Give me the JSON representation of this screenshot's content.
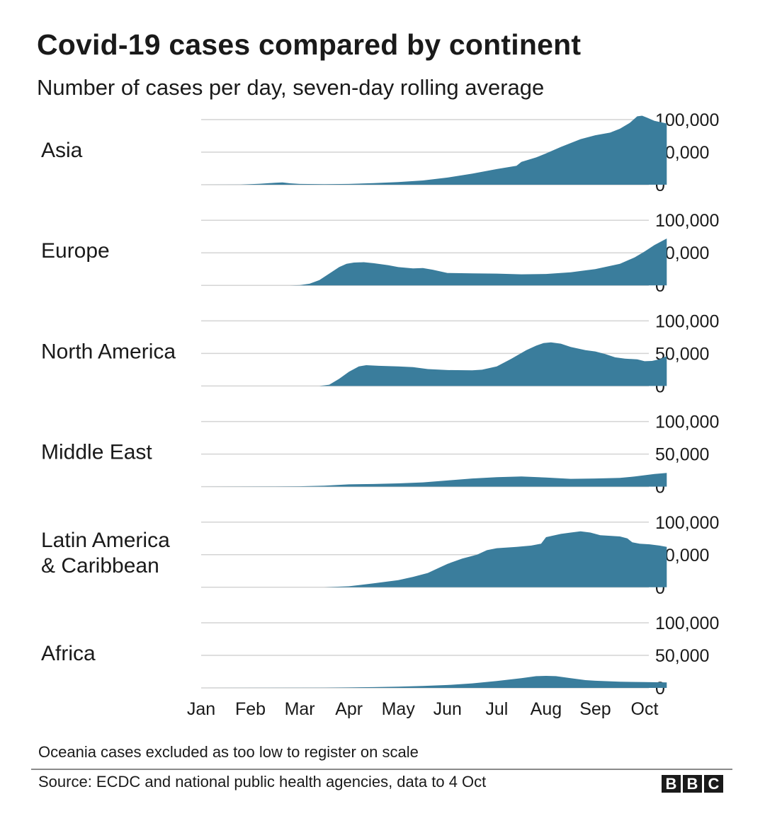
{
  "header": {
    "title": "Covid-19 cases compared by continent",
    "subtitle": "Number of cases per day, seven-day rolling average"
  },
  "footer": {
    "note": "Oceania cases excluded as too low to register on scale",
    "source": "Source: ECDC and national public health agencies, data to 4 Oct",
    "logo_letters": [
      "B",
      "B",
      "C"
    ]
  },
  "colors": {
    "area_fill": "#3a7d9c",
    "gridline": "#d4d4d4",
    "text": "#1a1a1a"
  },
  "chart_data": {
    "type": "area",
    "layout": "small-multiples",
    "x_unit": "month",
    "x_ticks": [
      "Jan",
      "Feb",
      "Mar",
      "Apr",
      "May",
      "Jun",
      "Jul",
      "Aug",
      "Sep",
      "Oct"
    ],
    "xlim": [
      0,
      9
    ],
    "ylim": [
      0,
      100000
    ],
    "y_ticks": [
      "100,000",
      "50,000",
      "0"
    ],
    "y_tick_values": [
      100000,
      50000,
      0
    ],
    "grid": true,
    "series": [
      {
        "name": "Asia",
        "points": [
          [
            0,
            0
          ],
          [
            0.8,
            100
          ],
          [
            1.2,
            1500
          ],
          [
            1.5,
            3000
          ],
          [
            1.65,
            3500
          ],
          [
            1.8,
            2200
          ],
          [
            2.0,
            1200
          ],
          [
            2.5,
            800
          ],
          [
            3.0,
            1200
          ],
          [
            3.5,
            2500
          ],
          [
            4.0,
            4000
          ],
          [
            4.5,
            6500
          ],
          [
            5.0,
            11000
          ],
          [
            5.5,
            17000
          ],
          [
            6.0,
            24000
          ],
          [
            6.4,
            29000
          ],
          [
            6.5,
            35000
          ],
          [
            6.8,
            42000
          ],
          [
            7.0,
            48000
          ],
          [
            7.3,
            58000
          ],
          [
            7.7,
            70000
          ],
          [
            8.0,
            76000
          ],
          [
            8.3,
            80000
          ],
          [
            8.5,
            86000
          ],
          [
            8.7,
            95000
          ],
          [
            8.85,
            105000
          ],
          [
            8.95,
            106000
          ],
          [
            9.05,
            103000
          ],
          [
            9.2,
            98000
          ],
          [
            9.45,
            94000
          ]
        ]
      },
      {
        "name": "Europe",
        "points": [
          [
            0,
            0
          ],
          [
            1.8,
            0
          ],
          [
            2.0,
            300
          ],
          [
            2.2,
            2500
          ],
          [
            2.4,
            8000
          ],
          [
            2.6,
            18000
          ],
          [
            2.8,
            28000
          ],
          [
            2.95,
            33000
          ],
          [
            3.1,
            35000
          ],
          [
            3.3,
            35500
          ],
          [
            3.5,
            34000
          ],
          [
            3.8,
            31000
          ],
          [
            4.0,
            28000
          ],
          [
            4.3,
            26000
          ],
          [
            4.5,
            26500
          ],
          [
            4.7,
            24000
          ],
          [
            5.0,
            19000
          ],
          [
            5.5,
            18500
          ],
          [
            6.0,
            18000
          ],
          [
            6.5,
            17000
          ],
          [
            7.0,
            17500
          ],
          [
            7.5,
            20000
          ],
          [
            8.0,
            25000
          ],
          [
            8.5,
            33000
          ],
          [
            8.8,
            43000
          ],
          [
            9.0,
            52000
          ],
          [
            9.2,
            62000
          ],
          [
            9.45,
            72000
          ]
        ]
      },
      {
        "name": "North America",
        "points": [
          [
            0,
            0
          ],
          [
            2.4,
            0
          ],
          [
            2.6,
            2000
          ],
          [
            2.8,
            11000
          ],
          [
            3.0,
            22000
          ],
          [
            3.2,
            30000
          ],
          [
            3.35,
            32000
          ],
          [
            3.6,
            31000
          ],
          [
            4.0,
            30000
          ],
          [
            4.3,
            29000
          ],
          [
            4.6,
            26000
          ],
          [
            5.0,
            24500
          ],
          [
            5.5,
            24000
          ],
          [
            5.7,
            25000
          ],
          [
            6.0,
            30000
          ],
          [
            6.3,
            42000
          ],
          [
            6.6,
            55000
          ],
          [
            6.8,
            62000
          ],
          [
            6.95,
            66000
          ],
          [
            7.1,
            67000
          ],
          [
            7.3,
            65000
          ],
          [
            7.5,
            60000
          ],
          [
            7.8,
            55000
          ],
          [
            8.0,
            53000
          ],
          [
            8.2,
            49000
          ],
          [
            8.4,
            44000
          ],
          [
            8.6,
            42000
          ],
          [
            8.85,
            41000
          ],
          [
            9.0,
            38000
          ],
          [
            9.15,
            38500
          ],
          [
            9.3,
            41000
          ],
          [
            9.45,
            46000
          ]
        ]
      },
      {
        "name": "Middle East",
        "points": [
          [
            0,
            0
          ],
          [
            1.5,
            200
          ],
          [
            2.0,
            500
          ],
          [
            2.5,
            1500
          ],
          [
            3.0,
            3500
          ],
          [
            3.5,
            4000
          ],
          [
            4.0,
            5000
          ],
          [
            4.5,
            6500
          ],
          [
            5.0,
            9500
          ],
          [
            5.5,
            12500
          ],
          [
            6.0,
            14500
          ],
          [
            6.5,
            15500
          ],
          [
            7.0,
            14000
          ],
          [
            7.5,
            12000
          ],
          [
            8.0,
            12500
          ],
          [
            8.5,
            13500
          ],
          [
            8.8,
            15500
          ],
          [
            9.0,
            17500
          ],
          [
            9.2,
            19500
          ],
          [
            9.45,
            21000
          ]
        ]
      },
      {
        "name": "Latin America & Caribbean",
        "points": [
          [
            0,
            0
          ],
          [
            2.5,
            0
          ],
          [
            3.0,
            1500
          ],
          [
            3.5,
            6000
          ],
          [
            4.0,
            11000
          ],
          [
            4.3,
            16000
          ],
          [
            4.6,
            22000
          ],
          [
            4.8,
            29000
          ],
          [
            5.0,
            36000
          ],
          [
            5.3,
            44000
          ],
          [
            5.6,
            50000
          ],
          [
            5.8,
            57000
          ],
          [
            6.0,
            60000
          ],
          [
            6.4,
            62000
          ],
          [
            6.7,
            64000
          ],
          [
            6.9,
            67000
          ],
          [
            7.0,
            77000
          ],
          [
            7.3,
            82000
          ],
          [
            7.5,
            84000
          ],
          [
            7.7,
            86000
          ],
          [
            7.9,
            84000
          ],
          [
            8.1,
            80000
          ],
          [
            8.3,
            79000
          ],
          [
            8.5,
            78000
          ],
          [
            8.65,
            75000
          ],
          [
            8.75,
            69000
          ],
          [
            8.9,
            67000
          ],
          [
            9.1,
            66000
          ],
          [
            9.3,
            64000
          ],
          [
            9.45,
            62000
          ]
        ]
      },
      {
        "name": "Africa",
        "points": [
          [
            0,
            0
          ],
          [
            2.5,
            200
          ],
          [
            3.0,
            600
          ],
          [
            3.5,
            1200
          ],
          [
            4.0,
            2000
          ],
          [
            4.5,
            3000
          ],
          [
            5.0,
            4500
          ],
          [
            5.5,
            7000
          ],
          [
            6.0,
            10500
          ],
          [
            6.5,
            15000
          ],
          [
            6.8,
            18000
          ],
          [
            7.0,
            18500
          ],
          [
            7.2,
            18000
          ],
          [
            7.5,
            15000
          ],
          [
            7.8,
            12000
          ],
          [
            8.0,
            11000
          ],
          [
            8.5,
            9500
          ],
          [
            9.0,
            9000
          ],
          [
            9.45,
            8500
          ]
        ]
      }
    ]
  }
}
